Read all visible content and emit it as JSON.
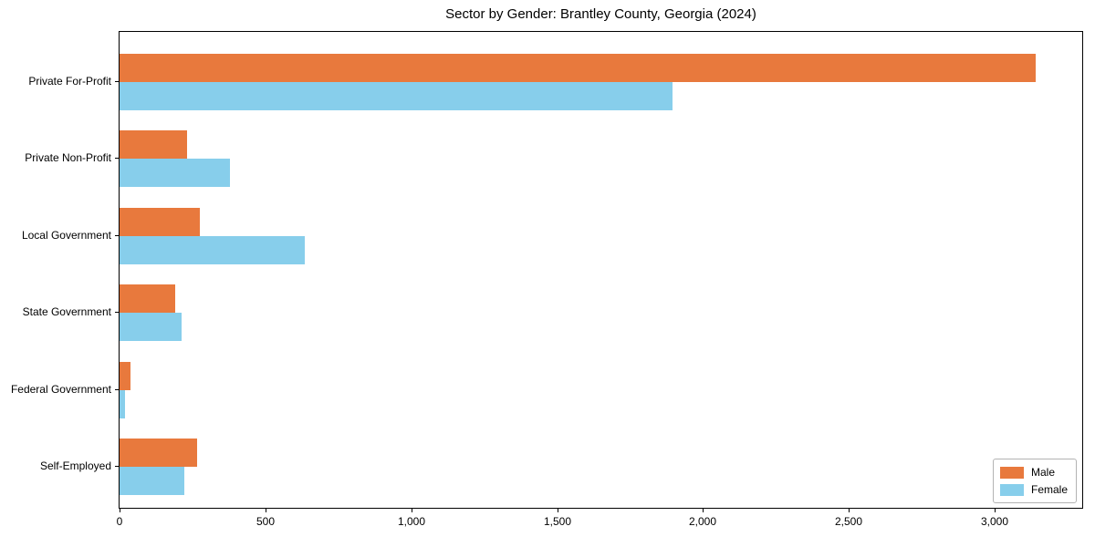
{
  "figure": {
    "background": "#ffffff",
    "text_color": "#000000",
    "axis_color": "#000000"
  },
  "chart_data": {
    "type": "bar",
    "orientation": "horizontal",
    "title": "Sector by Gender: Brantley County, Georgia (2024)",
    "categories": [
      "Private For-Profit",
      "Private Non-Profit",
      "Local Government",
      "State Government",
      "Federal Government",
      "Self-Employed"
    ],
    "series": [
      {
        "name": "Male",
        "color": "#e8793d",
        "values": [
          3140,
          230,
          275,
          192,
          36,
          265
        ]
      },
      {
        "name": "Female",
        "color": "#87ceeb",
        "values": [
          1897,
          378,
          634,
          212,
          18,
          222
        ]
      }
    ],
    "xlabel": "",
    "ylabel": "",
    "xlim": [
      0,
      3300
    ],
    "xticks": [
      0,
      500,
      1000,
      1500,
      2000,
      2500,
      3000
    ],
    "xtick_labels": [
      "0",
      "500",
      "1,000",
      "1,500",
      "2,000",
      "2,500",
      "3,000"
    ],
    "grid": false,
    "legend": {
      "position": "lower right",
      "entries": [
        "Male",
        "Female"
      ]
    }
  }
}
